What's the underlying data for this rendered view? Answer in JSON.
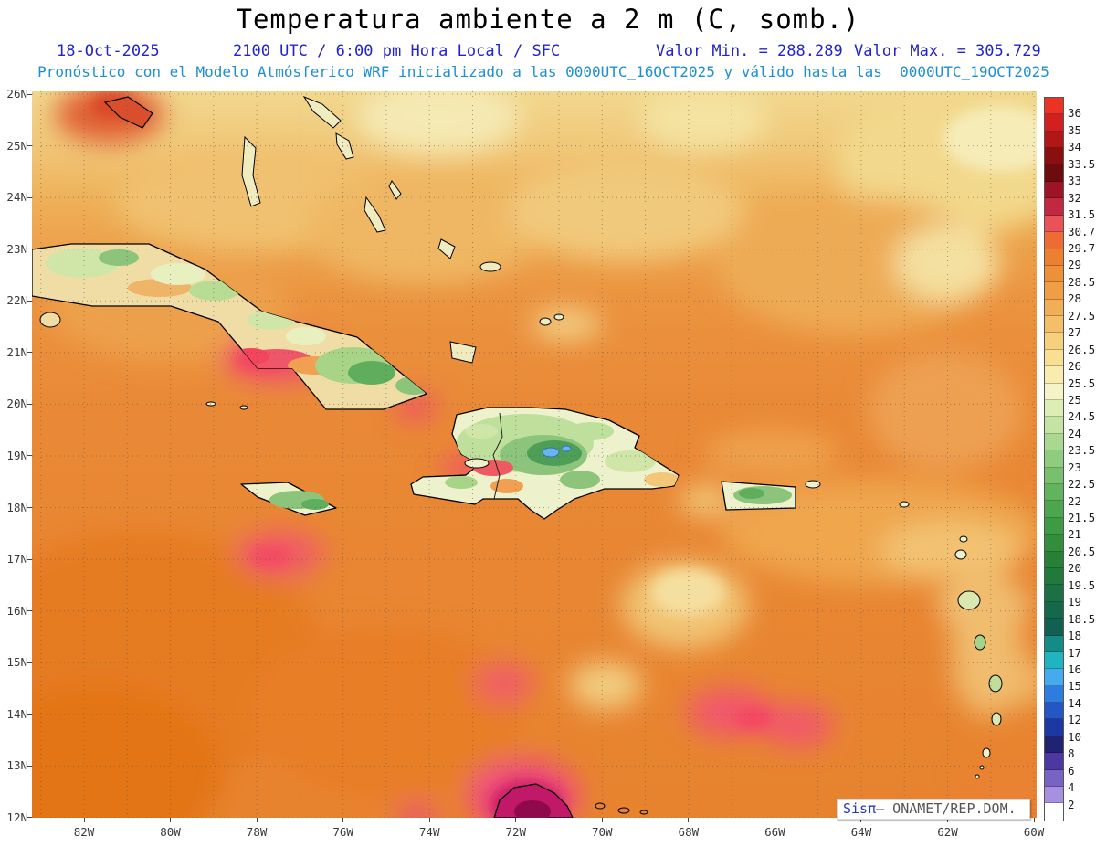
{
  "header": {
    "title": "Temperatura ambiente a 2 m (C, somb.)",
    "date": "18-Oct-2025",
    "time_line": "2100 UTC / 6:00 pm Hora Local / SFC",
    "min_label": "Valor Min. = 288.289",
    "max_label": "Valor Max. = 305.729",
    "forecast_line": "Pronóstico con el Modelo Atmósferico WRF inicializado a las 0000UTC_16OCT2025 y válido hasta las  0000UTC_19OCT2025",
    "colors": {
      "title": "#000000",
      "info_blue": "#2323cc",
      "forecast_cyan": "#1e8fd2"
    }
  },
  "map": {
    "lat_labels": [
      "26N",
      "25N",
      "24N",
      "23N",
      "22N",
      "21N",
      "20N",
      "19N",
      "18N",
      "17N",
      "16N",
      "15N",
      "14N",
      "13N",
      "12N"
    ],
    "lon_labels": [
      "82W",
      "80W",
      "78W",
      "76W",
      "74W",
      "72W",
      "70W",
      "68W",
      "66W",
      "64W",
      "62W",
      "60W"
    ]
  },
  "legend": {
    "labels": [
      "36",
      "35",
      "34",
      "33.5",
      "33",
      "32",
      "31.5",
      "30.7",
      "29.7",
      "29",
      "28.5",
      "28",
      "27.5",
      "27",
      "26.5",
      "26",
      "25.5",
      "25",
      "24.5",
      "24",
      "23.5",
      "23",
      "22.5",
      "22",
      "21.5",
      "21",
      "20.5",
      "20",
      "19.5",
      "19",
      "18.5",
      "18",
      "17",
      "16",
      "15",
      "14",
      "12",
      "10",
      "8",
      "6",
      "4",
      "2"
    ],
    "colors": [
      "#ea3323",
      "#d21f1f",
      "#b01717",
      "#8a0f10",
      "#6e0b0c",
      "#9c1426",
      "#c22840",
      "#ea5258",
      "#ec6c34",
      "#ec8030",
      "#ee9038",
      "#f09e46",
      "#f2ae57",
      "#f4bf68",
      "#f6d07c",
      "#f8df92",
      "#faecae",
      "#f4f4c8",
      "#ddeeb4",
      "#c3e4a2",
      "#a9d890",
      "#90cc7e",
      "#78c06d",
      "#61b35d",
      "#4ca64e",
      "#3f9a45",
      "#338d3d",
      "#288036",
      "#217a3b",
      "#1b7143",
      "#16684a",
      "#126051",
      "#138c86",
      "#1fb4c0",
      "#46aaee",
      "#2e7ce0",
      "#2456c4",
      "#1c38a4",
      "#202272",
      "#4c38a0",
      "#7862c4",
      "#a890e0",
      "#ffffff"
    ]
  },
  "watermark": {
    "brand": "Sisπ",
    "rest": "— ONAMET/REP.DOM."
  },
  "chart_data": {
    "type": "heatmap",
    "title": "Temperatura ambiente a 2 m (C, somb.)",
    "valid_time": "18-Oct-2025 2100 UTC / 6:00 pm Hora Local / SFC",
    "units": "C",
    "min_value": 288.289,
    "max_value": 305.729,
    "lat_range": [
      "12N",
      "26N"
    ],
    "lon_range": [
      "82W",
      "60W"
    ],
    "legend_levels": [
      2,
      4,
      6,
      8,
      10,
      12,
      14,
      15,
      16,
      17,
      18,
      18.5,
      19,
      19.5,
      20,
      20.5,
      21,
      21.5,
      22,
      22.5,
      23,
      23.5,
      24,
      24.5,
      25,
      25.5,
      26,
      26.5,
      27,
      27.5,
      28,
      28.5,
      29,
      29.7,
      30.7,
      31.5,
      32,
      33,
      33.5,
      34,
      35,
      36
    ],
    "model_note": "Pronóstico WRF inicializado 0000UTC_16OCT2025, válido hasta 0000UTC_19OCT2025",
    "legend_position": "right",
    "grid": true
  }
}
